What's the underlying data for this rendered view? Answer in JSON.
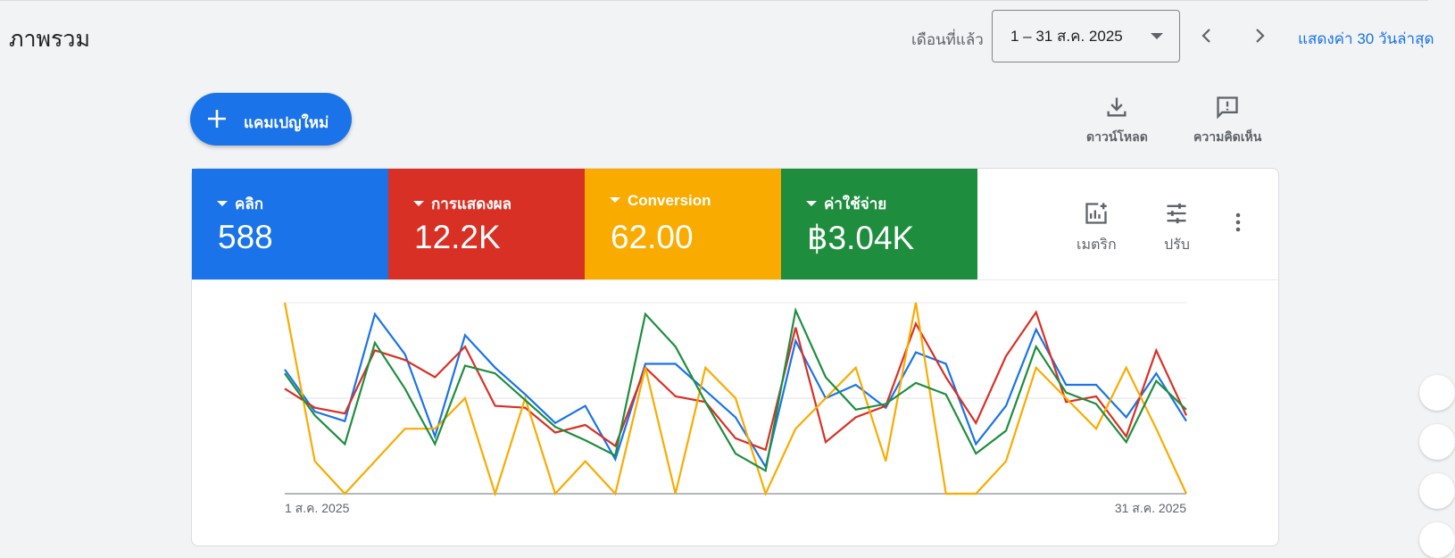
{
  "header": {
    "title": "ภาพรวม",
    "period_label": "เดือนที่แล้ว",
    "date_range": "1 – 31 ส.ค. 2025",
    "show_last": "แสดงค่า 30 วันล่าสุด"
  },
  "actions": {
    "new_campaign": "แคมเปญใหม่",
    "download": "ดาวน์โหลด",
    "feedback": "ความคิดเห็น"
  },
  "metrics": [
    {
      "label": "คลิก",
      "value": "588",
      "color": "#1a73e8"
    },
    {
      "label": "การแสดงผล",
      "value": "12.2K",
      "color": "#d93025"
    },
    {
      "label": "Conversion",
      "value": "62.00",
      "color": "#f9ab00"
    },
    {
      "label": "ค่าใช้จ่าย",
      "value": "฿3.04K",
      "color": "#1e8e3e"
    }
  ],
  "card_tools": {
    "metrics": "เมตริก",
    "adjust": "ปรับ"
  },
  "chart_data": {
    "type": "line",
    "x_labels": [
      "1 ส.ค. 2025",
      "31 ส.ค. 2025"
    ],
    "series": [
      {
        "color": "#1a73e8",
        "values": [
          0.65,
          0.43,
          0.38,
          0.94,
          0.73,
          0.3,
          0.83,
          0.66,
          0.52,
          0.37,
          0.46,
          0.18,
          0.68,
          0.68,
          0.54,
          0.4,
          0.14,
          0.8,
          0.5,
          0.57,
          0.45,
          0.74,
          0.68,
          0.26,
          0.46,
          0.86,
          0.57,
          0.57,
          0.4,
          0.63,
          0.38
        ]
      },
      {
        "color": "#d93025",
        "values": [
          0.55,
          0.45,
          0.42,
          0.75,
          0.7,
          0.61,
          0.77,
          0.46,
          0.45,
          0.32,
          0.36,
          0.25,
          0.66,
          0.51,
          0.48,
          0.29,
          0.23,
          0.87,
          0.27,
          0.4,
          0.46,
          0.89,
          0.61,
          0.37,
          0.72,
          0.95,
          0.48,
          0.51,
          0.3,
          0.75,
          0.41
        ]
      },
      {
        "color": "#f9ab00",
        "values": [
          1.0,
          0.17,
          0.0,
          0.17,
          0.34,
          0.34,
          0.5,
          0.0,
          0.5,
          0.0,
          0.17,
          0.0,
          0.66,
          0.0,
          0.66,
          0.5,
          0.0,
          0.34,
          0.5,
          0.66,
          0.17,
          1.0,
          0.0,
          0.0,
          0.17,
          0.66,
          0.5,
          0.34,
          0.66,
          0.34,
          0.0
        ]
      },
      {
        "color": "#1e8e3e",
        "values": [
          0.63,
          0.41,
          0.26,
          0.79,
          0.55,
          0.26,
          0.67,
          0.63,
          0.49,
          0.35,
          0.28,
          0.2,
          0.94,
          0.77,
          0.48,
          0.21,
          0.12,
          0.96,
          0.61,
          0.44,
          0.47,
          0.58,
          0.52,
          0.21,
          0.33,
          0.77,
          0.53,
          0.47,
          0.27,
          0.59,
          0.44
        ]
      }
    ]
  }
}
